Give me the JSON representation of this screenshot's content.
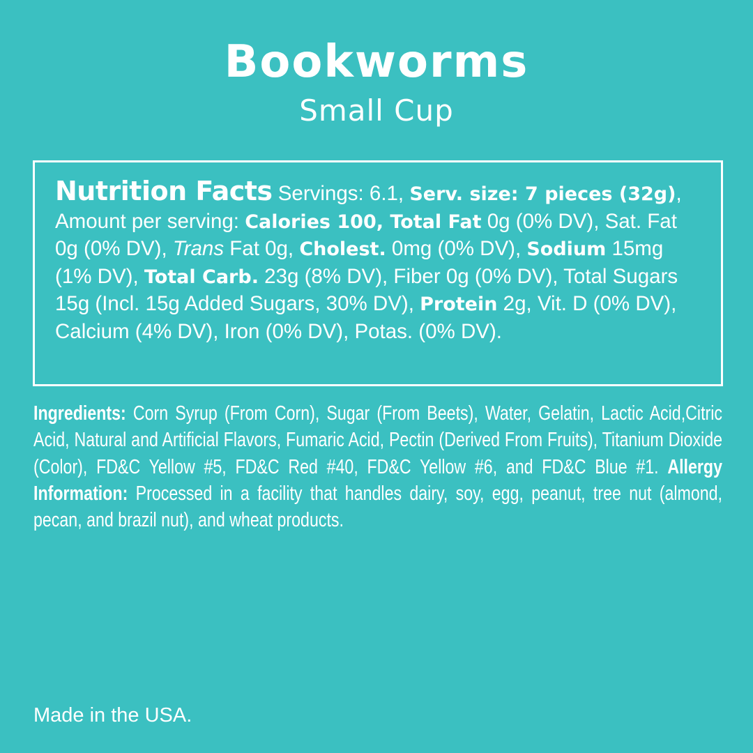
{
  "title": "Bookworms",
  "subtitle": "Small Cup",
  "nutrition": {
    "segments": [
      {
        "text": "Nutrition Facts",
        "style": "head"
      },
      {
        "text": " Servings: 6.1, ",
        "style": "normal"
      },
      {
        "text": "Serv. size: 7 pieces (32g)",
        "style": "bold"
      },
      {
        "text": ", Amount per serving: ",
        "style": "normal"
      },
      {
        "text": "Calories 100, Total Fat",
        "style": "bold"
      },
      {
        "text": " 0g (0% DV), Sat. Fat 0g (0% DV), ",
        "style": "normal"
      },
      {
        "text": "Trans",
        "style": "italic"
      },
      {
        "text": " Fat 0g, ",
        "style": "normal"
      },
      {
        "text": "Cholest.",
        "style": "bold"
      },
      {
        "text": " 0mg (0% DV), ",
        "style": "normal"
      },
      {
        "text": "Sodium",
        "style": "bold"
      },
      {
        "text": " 15mg (1% DV), ",
        "style": "normal"
      },
      {
        "text": "Total Carb.",
        "style": "bold"
      },
      {
        "text": " 23g (8% DV), Fiber 0g (0% DV), Total Sugars 15g (Incl. 15g Added Sugars, 30% DV), ",
        "style": "normal"
      },
      {
        "text": "Protein",
        "style": "bold"
      },
      {
        "text": " 2g, Vit. D (0% DV), Calcium (4% DV), Iron (0% DV), Potas. (0% DV).",
        "style": "normal"
      }
    ]
  },
  "ingredients": {
    "label": "Ingredients:",
    "text": " Corn Syrup (From Corn), Sugar (From Beets), Water, Gelatin, Lactic Acid,Citric Acid, Natural and Artificial Flavors, Fumaric Acid, Pectin (Derived From Fruits), Titanium Dioxide (Color), FD&C Yellow #5, FD&C Red #40, FD&C Yellow #6, and FD&C Blue #1. ",
    "allergy_label": "Allergy Information:",
    "allergy_text": " Processed in a facility that handles dairy, soy, egg, peanut, tree nut (almond, pecan, and brazil nut), and wheat products."
  },
  "footer": "Made in the USA.",
  "colors": {
    "background": "#3bc0c1",
    "text": "#ffffff"
  }
}
